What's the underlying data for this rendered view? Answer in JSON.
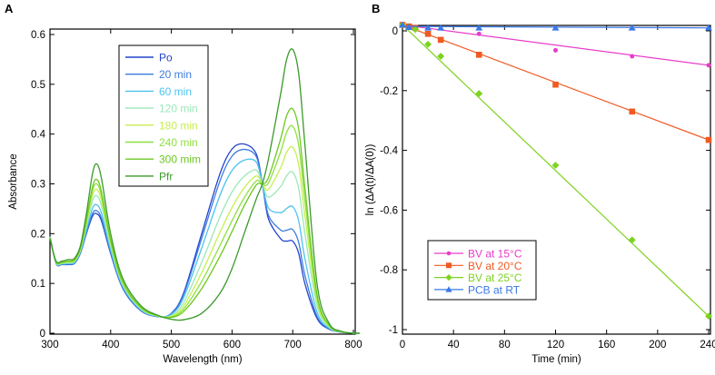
{
  "chart_data": [
    {
      "panel_label": "A",
      "type": "line",
      "xlabel": "Wavelength (nm)",
      "ylabel": "Absorbance",
      "xlim": [
        300,
        810
      ],
      "ylim": [
        0,
        0.61
      ],
      "xticks": [
        "300",
        "400",
        "500",
        "600",
        "700",
        "800"
      ],
      "yticks": [
        "0",
        "0.1",
        "0.2",
        "0.3",
        "0.4",
        "0.5",
        "0.6"
      ],
      "legend_position": "top-center",
      "x": [
        300,
        310,
        320,
        330,
        340,
        350,
        360,
        370,
        377,
        385,
        400,
        420,
        450,
        480,
        500,
        520,
        550,
        580,
        600,
        620,
        640,
        650,
        660,
        680,
        690,
        700,
        710,
        720,
        740,
        760,
        780,
        800,
        810
      ],
      "po_spectrum": [
        0.195,
        0.14,
        0.138,
        0.138,
        0.14,
        0.16,
        0.2,
        0.235,
        0.24,
        0.225,
        0.16,
        0.09,
        0.045,
        0.033,
        0.04,
        0.08,
        0.2,
        0.32,
        0.37,
        0.38,
        0.36,
        0.3,
        0.23,
        0.19,
        0.185,
        0.185,
        0.16,
        0.1,
        0.03,
        0.008,
        0.002,
        0,
        0
      ],
      "pfr_spectrum": [
        0.19,
        0.145,
        0.145,
        0.148,
        0.15,
        0.175,
        0.24,
        0.32,
        0.34,
        0.31,
        0.2,
        0.11,
        0.055,
        0.035,
        0.028,
        0.027,
        0.04,
        0.08,
        0.13,
        0.2,
        0.27,
        0.3,
        0.35,
        0.48,
        0.55,
        0.57,
        0.52,
        0.38,
        0.1,
        0.02,
        0.004,
        0,
        0
      ],
      "series": [
        {
          "name": "Po",
          "color": "#2244cc",
          "pfr_fraction": 0,
          "peak_700": 0.185
        },
        {
          "name": "20 min",
          "color": "#3d7be0",
          "pfr_fraction": 0.06,
          "peak_700": 0.208
        },
        {
          "name": "60 min",
          "color": "#4cc3ee",
          "pfr_fraction": 0.18,
          "peak_700": 0.255
        },
        {
          "name": "120 min",
          "color": "#9ae8b8",
          "pfr_fraction": 0.36,
          "peak_700": 0.323
        },
        {
          "name": "180 min",
          "color": "#c8ee50",
          "pfr_fraction": 0.49,
          "peak_700": 0.375
        },
        {
          "name": "240 min",
          "color": "#8ee040",
          "pfr_fraction": 0.6,
          "peak_700": 0.418
        },
        {
          "name": "300 mim",
          "color": "#6cc820",
          "pfr_fraction": 0.69,
          "peak_700": 0.452
        },
        {
          "name": "Pfr",
          "color": "#3a9a2a",
          "pfr_fraction": 1,
          "peak_700": 0.57
        }
      ]
    },
    {
      "panel_label": "B",
      "type": "scatter",
      "xlabel": "Time (min)",
      "ylabel": "ln (ΔA(t)/ΔA(0))",
      "xlim": [
        0,
        242
      ],
      "ylim": [
        -1.0,
        0.02
      ],
      "xticks": [
        "0",
        "40",
        "80",
        "120",
        "160",
        "200",
        "240"
      ],
      "yticks": [
        "0",
        "-0.2",
        "-0.4",
        "-0.6",
        "-0.8",
        "-1"
      ],
      "legend_position": "bottom-left",
      "series": [
        {
          "name": "BV at 15°C",
          "color": "#e83cc8",
          "marker": "circle",
          "x": [
            0,
            60,
            120,
            180,
            240
          ],
          "y": [
            0.02,
            -0.01,
            -0.065,
            -0.085,
            -0.115
          ],
          "fit": [
            0.02,
            -0.115
          ]
        },
        {
          "name": "BV at 20°C",
          "color": "#f05a22",
          "marker": "square",
          "x": [
            0,
            5,
            10,
            20,
            30,
            60,
            120,
            180,
            240
          ],
          "y": [
            0.02,
            0.015,
            0.01,
            -0.01,
            -0.03,
            -0.08,
            -0.18,
            -0.27,
            -0.365
          ],
          "fit": [
            0.02,
            -0.365
          ]
        },
        {
          "name": "BV at 25°C",
          "color": "#7ed321",
          "marker": "diamond",
          "x": [
            0,
            10,
            20,
            30,
            60,
            120,
            180,
            240
          ],
          "y": [
            0.02,
            0.005,
            -0.045,
            -0.085,
            -0.21,
            -0.45,
            -0.7,
            -0.955
          ],
          "fit": [
            0.02,
            -0.955
          ]
        },
        {
          "name": "PCB at RT",
          "color": "#3a78e8",
          "marker": "triangle",
          "x": [
            0,
            5,
            20,
            30,
            60,
            120,
            180,
            240
          ],
          "y": [
            0.02,
            0.012,
            0.01,
            0.01,
            0.01,
            0.01,
            0.01,
            0.01
          ],
          "fit": [
            0.015,
            0.01
          ]
        }
      ]
    }
  ]
}
